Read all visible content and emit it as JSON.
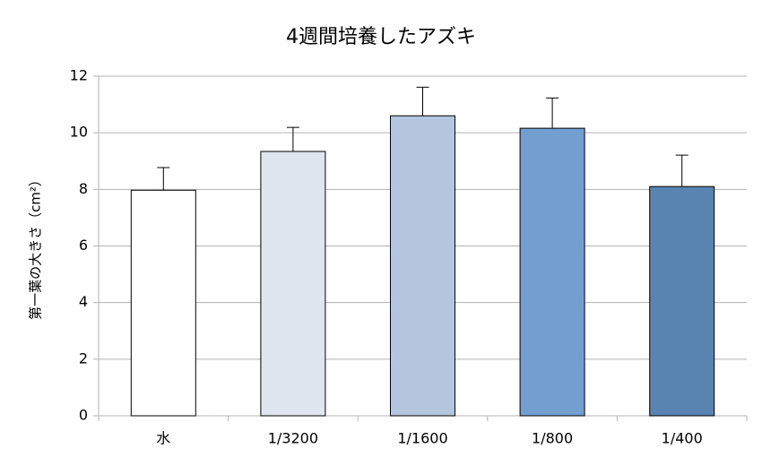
{
  "chart_data": {
    "type": "bar",
    "title": "4週間培養したアズキ",
    "y_label": "第一葉の大きさ（cm²）",
    "categories": [
      "水",
      "1/3200",
      "1/1600",
      "1/800",
      "1/400"
    ],
    "values": [
      7.97,
      9.34,
      10.6,
      10.16,
      8.1
    ],
    "errors": [
      0.8,
      0.85,
      1.01,
      1.07,
      1.11
    ],
    "colors": [
      "#ffffff",
      "#dfe6f0",
      "#b4c6de",
      "#729fcf",
      "#5983b0"
    ],
    "ylim": [
      0,
      12
    ],
    "yticks": [
      0,
      2,
      4,
      6,
      8,
      10,
      12
    ],
    "grid": true
  }
}
